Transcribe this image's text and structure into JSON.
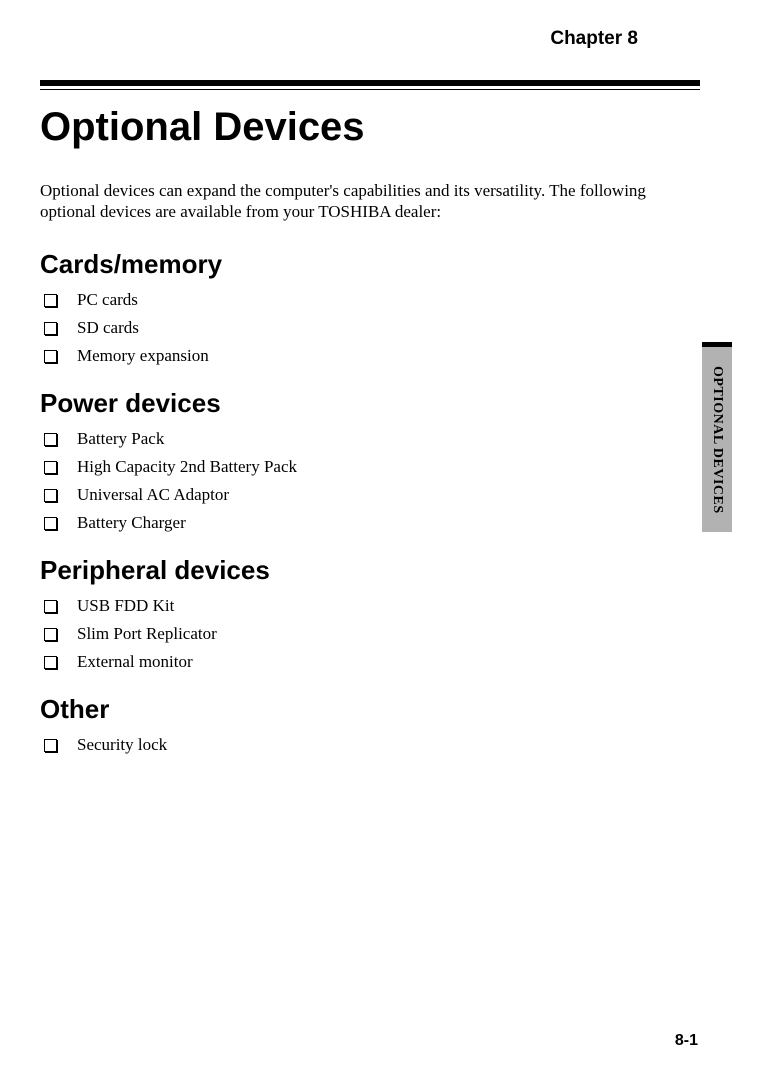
{
  "chapter_label": "Chapter 8",
  "main_title": "Optional Devices",
  "intro": "Optional devices can expand the computer's capabilities and its versatility. The following optional devices are available from your TOSHIBA dealer:",
  "sections": [
    {
      "title": "Cards/memory",
      "items": [
        "PC cards",
        "SD cards",
        "Memory expansion"
      ]
    },
    {
      "title": "Power devices",
      "items": [
        "Battery Pack",
        "High Capacity 2nd Battery Pack",
        "Universal AC Adaptor",
        "Battery Charger"
      ]
    },
    {
      "title": "Peripheral devices",
      "items": [
        "USB FDD Kit",
        "Slim Port Replicator",
        "External monitor"
      ]
    },
    {
      "title": "Other",
      "items": [
        "Security lock"
      ]
    }
  ],
  "side_tab": "OPTIONAL DEVICES",
  "page_number": "8-1",
  "colors": {
    "background": "#ffffff",
    "text": "#000000",
    "tab_bg": "#b2b2b2"
  }
}
